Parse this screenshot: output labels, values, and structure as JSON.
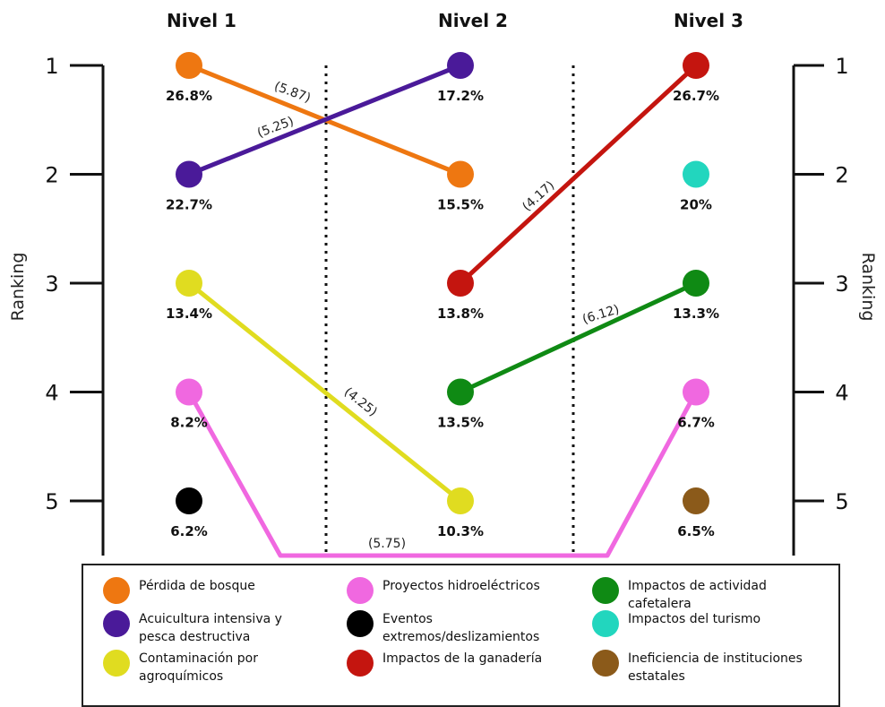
{
  "chart_data": {
    "type": "bump",
    "levels": [
      "Nivel 1",
      "Nivel 2",
      "Nivel 3"
    ],
    "y_ticks": [
      "1",
      "2",
      "3",
      "4",
      "5"
    ],
    "ylabel_left": "Ranking",
    "ylabel_right": "Ranking",
    "points": [
      {
        "level": 0,
        "rank": 1,
        "label": "26.8%",
        "color": "#ee7711"
      },
      {
        "level": 0,
        "rank": 2,
        "label": "22.7%",
        "color": "#4a1a99"
      },
      {
        "level": 0,
        "rank": 3,
        "label": "13.4%",
        "color": "#e0dc20"
      },
      {
        "level": 0,
        "rank": 4,
        "label": "8.2%",
        "color": "#f068e0"
      },
      {
        "level": 0,
        "rank": 5,
        "label": "6.2%",
        "color": "#000000"
      },
      {
        "level": 1,
        "rank": 1,
        "label": "17.2%",
        "color": "#4a1a99"
      },
      {
        "level": 1,
        "rank": 2,
        "label": "15.5%",
        "color": "#ee7711"
      },
      {
        "level": 1,
        "rank": 3,
        "label": "13.8%",
        "color": "#c4150f"
      },
      {
        "level": 1,
        "rank": 4,
        "label": "13.5%",
        "color": "#0f8a14"
      },
      {
        "level": 1,
        "rank": 5,
        "label": "10.3%",
        "color": "#e0dc20"
      },
      {
        "level": 2,
        "rank": 1,
        "label": "26.7%",
        "color": "#c4150f"
      },
      {
        "level": 2,
        "rank": 2,
        "label": "20%",
        "color": "#22d6be"
      },
      {
        "level": 2,
        "rank": 3,
        "label": "13.3%",
        "color": "#0f8a14"
      },
      {
        "level": 2,
        "rank": 4,
        "label": "6.7%",
        "color": "#f068e0"
      },
      {
        "level": 2,
        "rank": 5,
        "label": "6.5%",
        "color": "#8b5a1a"
      }
    ],
    "links": [
      {
        "from": [
          0,
          1
        ],
        "to": [
          1,
          2
        ],
        "value": "(5.87)",
        "color": "#ee7711"
      },
      {
        "from": [
          0,
          2
        ],
        "to": [
          1,
          1
        ],
        "value": "(5.25)",
        "color": "#4a1a99"
      },
      {
        "from": [
          0,
          3
        ],
        "to": [
          1,
          5
        ],
        "value": "(4.25)",
        "color": "#e0dc20"
      },
      {
        "from": [
          1,
          3
        ],
        "to": [
          2,
          1
        ],
        "value": "(4.17)",
        "color": "#c4150f"
      },
      {
        "from": [
          1,
          4
        ],
        "to": [
          2,
          3
        ],
        "value": "(6.12)",
        "color": "#0f8a14"
      },
      {
        "from": [
          0,
          4
        ],
        "to": [
          2,
          4
        ],
        "value": "(5.75)",
        "color": "#f068e0",
        "route": "below"
      }
    ],
    "legend": [
      {
        "label": "Pérdida de bosque",
        "color": "#ee7711"
      },
      {
        "label": "Acuicultura intensiva y pesca destructiva",
        "color": "#4a1a99"
      },
      {
        "label": "Contaminación por agroquímicos",
        "color": "#e0dc20"
      },
      {
        "label": "Proyectos hidroeléctricos",
        "color": "#f068e0"
      },
      {
        "label": "Eventos extremos/deslizamientos",
        "color": "#000000"
      },
      {
        "label": "Impactos de la ganadería",
        "color": "#c4150f"
      },
      {
        "label": "Impactos de actividad cafetalera",
        "color": "#0f8a14"
      },
      {
        "label": "Impactos del turismo",
        "color": "#22d6be"
      },
      {
        "label": "Ineficiencia de instituciones estatales",
        "color": "#8b5a1a"
      }
    ]
  }
}
